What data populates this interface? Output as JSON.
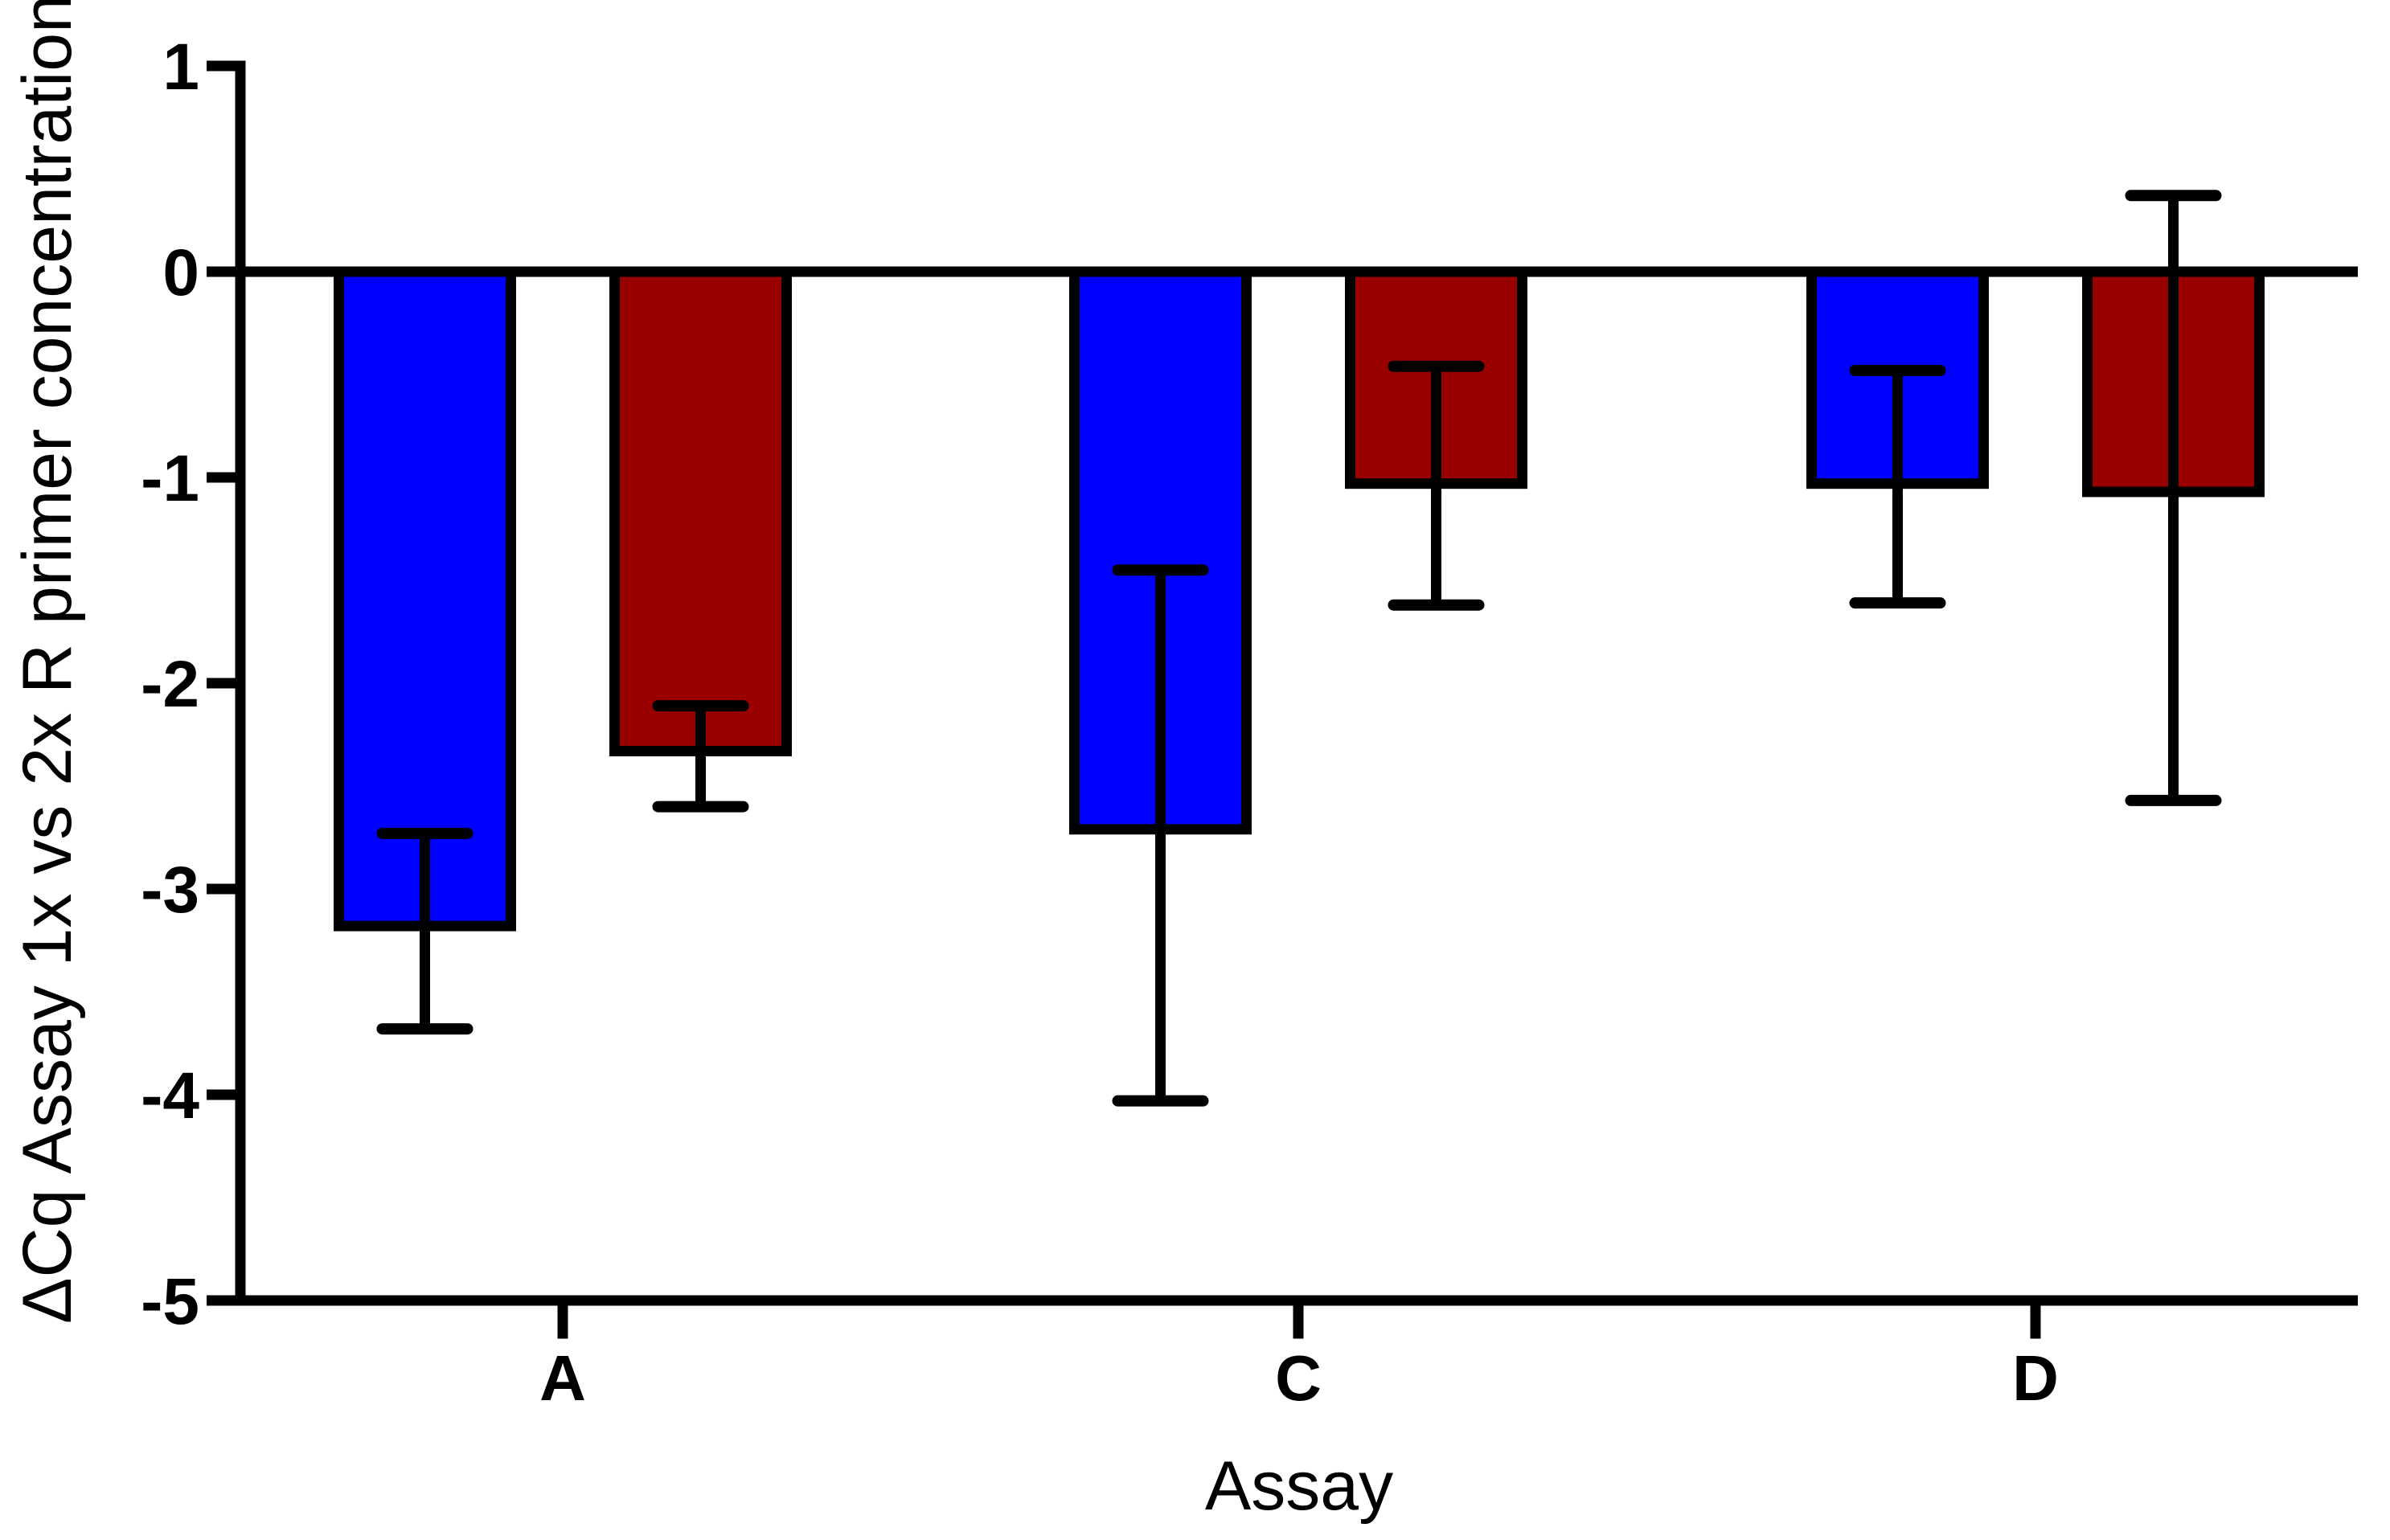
{
  "figure": {
    "background": "#FFFFFF",
    "axis_color": "#000000"
  },
  "chart_data": {
    "type": "bar",
    "title": "",
    "xlabel": "Assay",
    "ylabel": "ΔCq Assay 1x vs 2x R primer concentration",
    "categories": [
      "A",
      "C",
      "D"
    ],
    "series": [
      {
        "name": "blue-bars",
        "color": "#0000FF",
        "values": [
          -3.18,
          -2.71,
          -1.03
        ],
        "error_high": [
          -2.73,
          -1.45,
          -0.48
        ],
        "error_low": [
          -3.68,
          -4.03,
          -1.61
        ]
      },
      {
        "name": "dark-red-bars",
        "color": "#990000",
        "values": [
          -2.33,
          -1.03,
          -1.07
        ],
        "error_high": [
          -2.11,
          -0.46,
          0.37
        ],
        "error_low": [
          -2.6,
          -1.62,
          -2.57
        ]
      }
    ],
    "ylim": [
      -5,
      1
    ],
    "yticks": [
      1,
      0,
      -1,
      -2,
      -3,
      -4,
      -5
    ],
    "ytick_labels": [
      "1",
      "0",
      "-1",
      "-2",
      "-3",
      "-4",
      "-5"
    ],
    "grid": false,
    "legend_position": "none",
    "error_bar_style": "capped-both-ends",
    "bar_border_color": "#000000"
  }
}
